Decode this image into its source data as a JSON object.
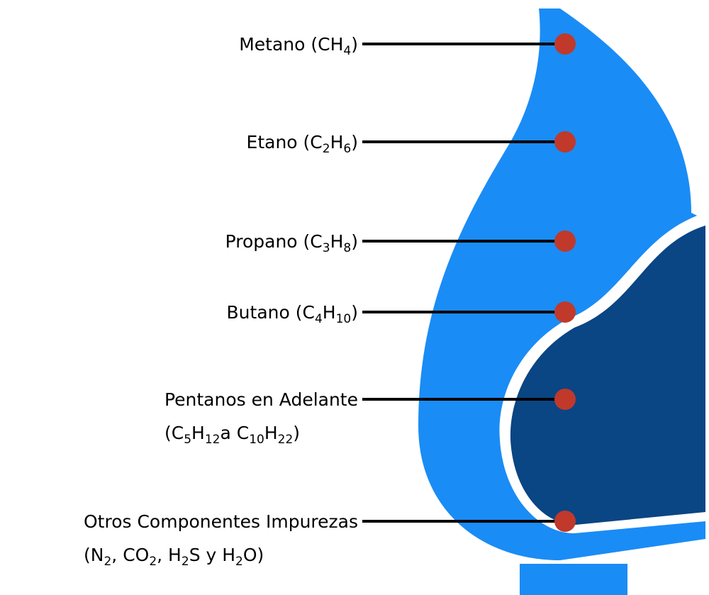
{
  "labels": [
    {
      "lines": [
        [
          "Metano (CH",
          "4",
          ")"
        ]
      ]
    },
    {
      "lines": [
        [
          "Etano (C",
          "2",
          "H",
          "6",
          ")"
        ]
      ]
    },
    {
      "lines": [
        [
          "Propano (C",
          "3",
          "H",
          "8",
          ")"
        ]
      ]
    },
    {
      "lines": [
        [
          "Butano (C",
          "4",
          "H",
          "10",
          ")"
        ]
      ]
    },
    {
      "lines": [
        [
          "Pentanos en Adelante"
        ],
        [
          "(C",
          "5",
          "H",
          "12",
          "a C",
          "10",
          "H",
          "22",
          ")"
        ]
      ]
    },
    {
      "lines": [
        [
          "Otros Componentes Impurezas"
        ],
        [
          "(N",
          "2",
          ", CO",
          "2",
          ", H",
          "2",
          "S y H",
          "2",
          "O)"
        ]
      ]
    }
  ]
}
